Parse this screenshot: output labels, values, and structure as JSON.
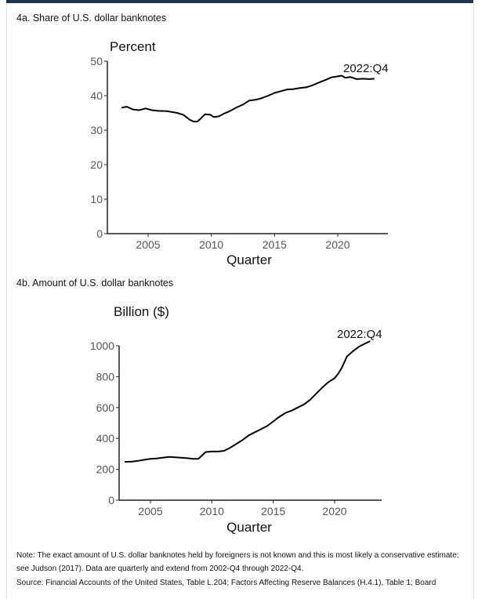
{
  "chart_data": [
    {
      "type": "line",
      "panel_title": "4a. Share of U.S. dollar banknotes",
      "ylabel": "Percent",
      "xlabel": "Quarter",
      "ylim": [
        0,
        50
      ],
      "yticks": [
        0,
        10,
        20,
        30,
        40,
        50
      ],
      "xlim": [
        2001.8,
        2024.1
      ],
      "xticks": [
        2005,
        2010,
        2015,
        2020
      ],
      "annotation": "2022:Q4",
      "series": [
        {
          "name": "Share",
          "x": [
            2002.9,
            2003.3,
            2003.8,
            2004.3,
            2004.8,
            2005.3,
            2005.8,
            2006.5,
            2007.3,
            2007.8,
            2008.3,
            2008.6,
            2008.9,
            2009.2,
            2009.5,
            2009.9,
            2010.2,
            2010.6,
            2011.0,
            2011.5,
            2012.0,
            2012.5,
            2013.0,
            2013.5,
            2014.0,
            2014.5,
            2015.0,
            2015.5,
            2016.0,
            2016.5,
            2017.0,
            2017.5,
            2018.0,
            2018.5,
            2019.0,
            2019.5,
            2020.0,
            2020.3,
            2020.6,
            2021.0,
            2021.5,
            2022.0,
            2022.5,
            2022.9
          ],
          "y": [
            36.5,
            36.8,
            36.0,
            35.8,
            36.3,
            35.8,
            35.6,
            35.5,
            35.0,
            34.4,
            33.0,
            32.5,
            32.5,
            33.5,
            34.6,
            34.5,
            33.8,
            34.0,
            34.8,
            35.6,
            36.6,
            37.4,
            38.6,
            38.8,
            39.3,
            40.0,
            40.8,
            41.3,
            41.8,
            41.9,
            42.2,
            42.4,
            43.0,
            43.8,
            44.5,
            45.3,
            45.6,
            45.8,
            45.2,
            45.4,
            44.8,
            44.9,
            44.8,
            44.9
          ]
        }
      ]
    },
    {
      "type": "line",
      "panel_title": "4b. Amount of U.S. dollar banknotes",
      "ylabel": "Billion ($)",
      "xlabel": "Quarter",
      "ylim": [
        0,
        1000
      ],
      "yticks": [
        0,
        200,
        400,
        600,
        800,
        1000
      ],
      "xlim": [
        2001.9,
        2023.9
      ],
      "xticks": [
        2005,
        2010,
        2015,
        2020
      ],
      "annotation": "2022:Q4",
      "series": [
        {
          "name": "Amount",
          "x": [
            2002.9,
            2003.5,
            2004.0,
            2004.5,
            2005.0,
            2005.5,
            2006.0,
            2006.5,
            2007.0,
            2007.5,
            2008.0,
            2008.5,
            2008.9,
            2009.2,
            2009.5,
            2010.0,
            2010.5,
            2011.0,
            2011.5,
            2012.0,
            2012.5,
            2013.0,
            2013.5,
            2014.0,
            2014.5,
            2015.0,
            2015.5,
            2016.0,
            2016.5,
            2017.0,
            2017.5,
            2018.0,
            2018.5,
            2019.0,
            2019.5,
            2020.0,
            2020.3,
            2020.6,
            2021.0,
            2021.5,
            2022.0,
            2022.5,
            2022.9
          ],
          "y": [
            248,
            250,
            255,
            262,
            268,
            270,
            275,
            280,
            278,
            275,
            272,
            268,
            268,
            290,
            312,
            315,
            315,
            320,
            340,
            365,
            390,
            420,
            440,
            460,
            480,
            510,
            540,
            565,
            580,
            600,
            620,
            650,
            690,
            730,
            765,
            790,
            820,
            860,
            930,
            965,
            995,
            1015,
            1030
          ]
        }
      ]
    }
  ],
  "note": "Note: The exact amount of U.S. dollar banknotes held by foreigners is not known and this is most likely a conservative estimate; see Judson (2017). Data are quarterly and extend from 2002-Q4 through 2022-Q4.",
  "source": "Source: Financial Accounts of the United States, Table L.204; Factors Affecting Reserve Balances (H.4.1), Table 1; Board"
}
